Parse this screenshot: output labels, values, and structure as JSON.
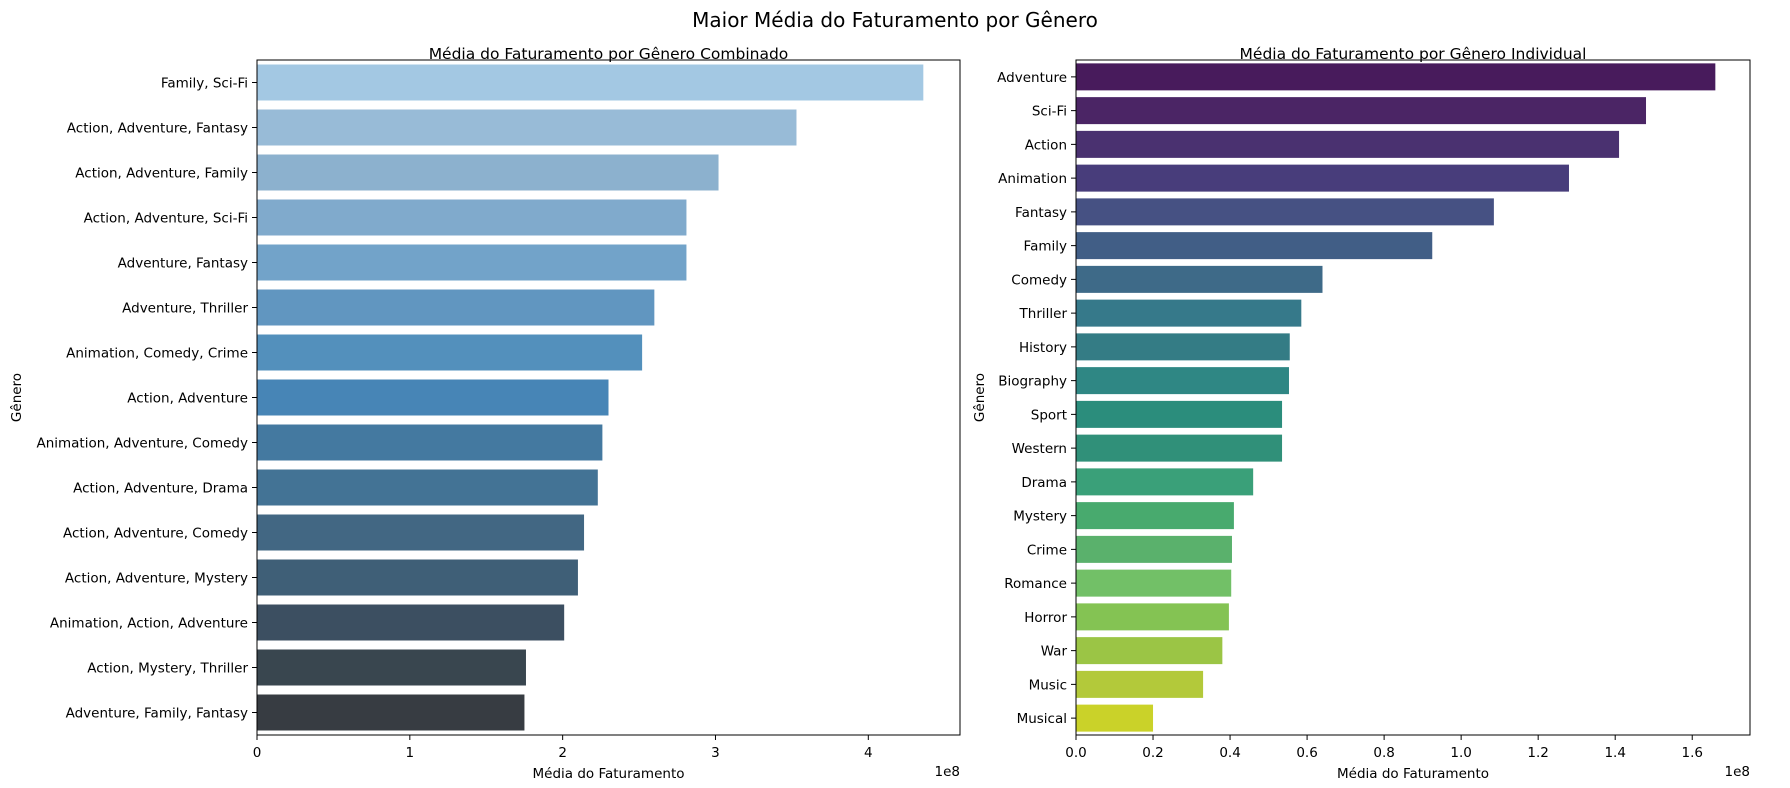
{
  "figure": {
    "title": "Maior Média do Faturamento por Gênero"
  },
  "chart_data": [
    {
      "type": "bar",
      "orientation": "horizontal",
      "title": "Média do Faturamento por Gênero Combinado",
      "xlabel": "Média do Faturamento",
      "ylabel": "Gênero",
      "x_offset_text": "1e8",
      "xlim": [
        0,
        4.6
      ],
      "xticks": [
        0,
        1,
        2,
        3,
        4
      ],
      "xtick_labels": [
        "0",
        "1",
        "2",
        "3",
        "4"
      ],
      "grid": false,
      "categories": [
        "Family, Sci-Fi",
        "Action, Adventure, Fantasy",
        "Action, Adventure, Family",
        "Action, Adventure, Sci-Fi",
        "Adventure, Fantasy",
        "Adventure, Thriller",
        "Animation, Comedy, Crime",
        "Action, Adventure",
        "Animation, Adventure, Comedy",
        "Action, Adventure, Drama",
        "Action, Adventure, Comedy",
        "Action, Adventure, Mystery",
        "Animation, Action, Adventure",
        "Action, Mystery, Thriller",
        "Adventure, Family, Fantasy"
      ],
      "values": [
        4.36,
        3.53,
        3.02,
        2.81,
        2.81,
        2.6,
        2.52,
        2.3,
        2.26,
        2.23,
        2.14,
        2.1,
        2.01,
        1.76,
        1.75
      ],
      "colors": [
        "#a3c8e3",
        "#98bbd7",
        "#8cb1ce",
        "#80aacc",
        "#72a3c9",
        "#6196c0",
        "#5390bc",
        "#4785b6",
        "#4479a0",
        "#437395",
        "#426783",
        "#3f5f77",
        "#3c4f61",
        "#39464f",
        "#373c42"
      ]
    },
    {
      "type": "bar",
      "orientation": "horizontal",
      "title": "Média do Faturamento por Gênero Individual",
      "xlabel": "Média do Faturamento",
      "ylabel": "Gênero",
      "x_offset_text": "1e8",
      "xlim": [
        0,
        1.75
      ],
      "xticks": [
        0,
        0.2,
        0.4,
        0.6,
        0.8,
        1.0,
        1.2,
        1.4,
        1.6
      ],
      "xtick_labels": [
        "0.0",
        "0.2",
        "0.4",
        "0.6",
        "0.8",
        "1.0",
        "1.2",
        "1.4",
        "1.6"
      ],
      "grid": false,
      "categories": [
        "Adventure",
        "Sci-Fi",
        "Action",
        "Animation",
        "Fantasy",
        "Family",
        "Comedy",
        "Thriller",
        "History",
        "Biography",
        "Sport",
        "Western",
        "Drama",
        "Mystery",
        "Crime",
        "Romance",
        "Horror",
        "War",
        "Music",
        "Musical"
      ],
      "values": [
        1.66,
        1.48,
        1.41,
        1.28,
        1.085,
        0.925,
        0.64,
        0.585,
        0.555,
        0.553,
        0.535,
        0.535,
        0.46,
        0.41,
        0.405,
        0.403,
        0.397,
        0.38,
        0.33,
        0.2
      ],
      "colors": [
        "#481b5c",
        "#4b2565",
        "#4a3170",
        "#483d7b",
        "#465183",
        "#415e86",
        "#3e6a88",
        "#36798a",
        "#347c85",
        "#2f8784",
        "#2b8d7c",
        "#309079",
        "#3aa079",
        "#48aa6e",
        "#5ab16c",
        "#72c067",
        "#84c353",
        "#9bc545",
        "#b3c93a",
        "#cad229"
      ]
    }
  ]
}
